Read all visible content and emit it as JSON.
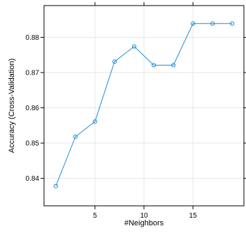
{
  "chart_data": {
    "type": "line",
    "xlabel": "#Neighbors",
    "ylabel": "Accuracy (Cross-Validation)",
    "x": [
      1,
      3,
      5,
      7,
      9,
      11,
      13,
      15,
      17,
      19
    ],
    "y": [
      0.8378,
      0.8518,
      0.8561,
      0.8731,
      0.8774,
      0.8721,
      0.8721,
      0.8839,
      0.8839,
      0.8839
    ],
    "xlim": [
      -0.2,
      20.2
    ],
    "ylim": [
      0.8322,
      0.889
    ],
    "xticks": [
      5,
      10,
      15
    ],
    "xtick_labels": [
      "5",
      "10",
      "15"
    ],
    "yticks": [
      0.84,
      0.85,
      0.86,
      0.87,
      0.88
    ],
    "ytick_labels": [
      "0.84",
      "0.85",
      "0.86",
      "0.87",
      "0.88"
    ],
    "grid": true,
    "line_color": "#1f8dd6",
    "grid_color": "#e6e6e6"
  }
}
